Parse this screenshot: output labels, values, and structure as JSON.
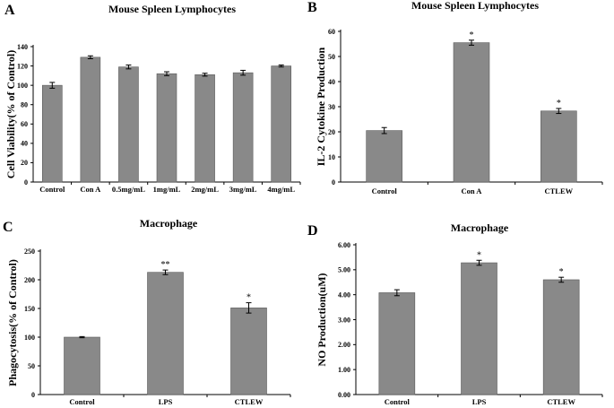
{
  "colors": {
    "bar": "#898989",
    "bar_stroke": "#5a5a5a",
    "axis": "#000000"
  },
  "chart_data": [
    {
      "panel": "A",
      "type": "bar",
      "title": "Mouse Spleen Lymphocytes",
      "ylabel": "Cell Viability(% of Control)",
      "xlabel": "",
      "ylim": [
        0,
        140
      ],
      "yticks": [
        0,
        20,
        40,
        60,
        80,
        100,
        120,
        140
      ],
      "ytick_labels": [
        "0",
        "20",
        "40",
        "60",
        "80",
        "100",
        "120",
        "140"
      ],
      "categories": [
        "Control",
        "Con A",
        "0.5mg/mL",
        "1mg/mL",
        "2mg/mL",
        "3mg/mL",
        "4mg/mL"
      ],
      "values": [
        100,
        129,
        119,
        112,
        111,
        113,
        120
      ],
      "errors": [
        3,
        1.5,
        2,
        2,
        1.5,
        2.5,
        1
      ],
      "sig": [
        "",
        "",
        "",
        "",
        "",
        "",
        ""
      ]
    },
    {
      "panel": "B",
      "type": "bar",
      "title": "Mouse Spleen Lymphocytes",
      "ylabel": "IL-2 Cytokine Production",
      "xlabel": "",
      "ylim": [
        0,
        60
      ],
      "yticks": [
        0,
        10,
        20,
        30,
        40,
        50,
        60
      ],
      "ytick_labels": [
        "0",
        "10",
        "20",
        "30",
        "40",
        "50",
        "60"
      ],
      "categories": [
        "Control",
        "Con A",
        "CTLEW"
      ],
      "values": [
        20.5,
        55.5,
        28.3
      ],
      "errors": [
        1.2,
        1.0,
        1.0
      ],
      "sig": [
        "",
        "*",
        "*"
      ]
    },
    {
      "panel": "C",
      "type": "bar",
      "title": "Macrophage",
      "ylabel": "Phagocytosis(% of Control)",
      "xlabel": "",
      "ylim": [
        0,
        250
      ],
      "yticks": [
        0,
        50,
        100,
        150,
        200,
        250
      ],
      "ytick_labels": [
        "0",
        "50",
        "100",
        "150",
        "200",
        "250"
      ],
      "categories": [
        "Control",
        "LPS",
        "CTLEW"
      ],
      "values": [
        100,
        213,
        151
      ],
      "errors": [
        1,
        4,
        9
      ],
      "sig": [
        "",
        "**",
        "*"
      ]
    },
    {
      "panel": "D",
      "type": "bar",
      "title": "Macrophage",
      "ylabel": "NO Production(uM)",
      "xlabel": "",
      "ylim": [
        0,
        6
      ],
      "yticks": [
        0,
        1,
        2,
        3,
        4,
        5,
        6
      ],
      "ytick_labels": [
        "0.00",
        "1.00",
        "2.00",
        "3.00",
        "4.00",
        "5.00",
        "6.00"
      ],
      "categories": [
        "Control",
        "LPS",
        "CTLEW"
      ],
      "values": [
        4.08,
        5.28,
        4.6
      ],
      "errors": [
        0.12,
        0.1,
        0.1
      ],
      "sig": [
        "",
        "*",
        "*"
      ]
    }
  ]
}
